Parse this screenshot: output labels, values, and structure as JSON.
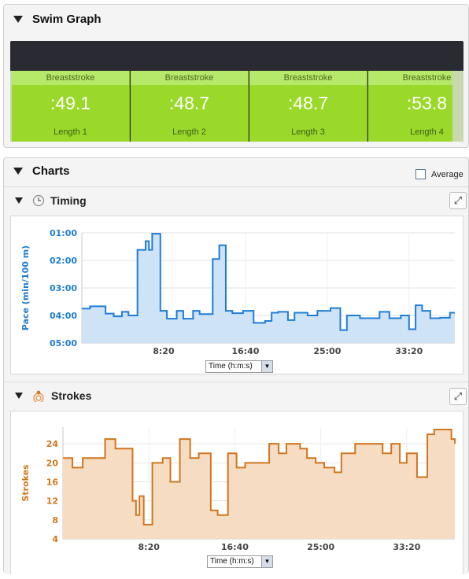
{
  "swim_graph": {
    "title": "Swim Graph",
    "laps": [
      {
        "stroke": "Breaststroke",
        "time": ":49.1",
        "label": "Length 1"
      },
      {
        "stroke": "Breaststroke",
        "time": ":48.7",
        "label": "Length 2"
      },
      {
        "stroke": "Breaststroke",
        "time": ":48.7",
        "label": "Length 3"
      },
      {
        "stroke": "Breaststroke",
        "time": ":53.8",
        "label": "Length 4"
      }
    ]
  },
  "charts": {
    "title": "Charts",
    "average_label": "Average",
    "timing": {
      "title": "Timing",
      "select_value": "Time (h:m:s)"
    },
    "strokes": {
      "title": "Strokes",
      "select_value": "Time (h:m:s)"
    }
  },
  "colors": {
    "lap_green": "#9ad82a",
    "pace_blue": "#1f7dd6",
    "stroke_orange": "#d0761c"
  },
  "icons": {
    "collapse": "triangle-down-icon",
    "clock": "clock-icon",
    "strokes": "swimmer-icon",
    "expand": "expand-icon"
  },
  "chart_data": [
    {
      "type": "area",
      "ylabel": "Pace (min/100 m)",
      "y_ticks": [
        "01:00",
        "02:00",
        "03:00",
        "04:00",
        "05:00"
      ],
      "y_inverted": true,
      "x_ticks": [
        "8:20",
        "16:40",
        "25:00",
        "33:20"
      ],
      "x_range_seconds": [
        0,
        2280
      ],
      "y_range_seconds": [
        60,
        300
      ],
      "grid": true,
      "series": [
        {
          "x": [
            0,
            50,
            145,
            195,
            245,
            285,
            340,
            390,
            410,
            430,
            480,
            520,
            580,
            620,
            680,
            720,
            800,
            840,
            880,
            920,
            985,
            1050,
            1120,
            1160,
            1200,
            1260,
            1300,
            1380,
            1440,
            1520,
            1580,
            1620,
            1700,
            1760,
            1820,
            1880,
            1950,
            2000,
            2040,
            2080,
            2130,
            2190,
            2250,
            2280
          ],
          "y": [
            225,
            220,
            236,
            242,
            232,
            240,
            97,
            78,
            97,
            62,
            230,
            247,
            230,
            247,
            230,
            237,
            117,
            87,
            230,
            235,
            230,
            256,
            252,
            234,
            232,
            250,
            234,
            240,
            230,
            224,
            272,
            240,
            246,
            246,
            232,
            246,
            240,
            270,
            218,
            230,
            246,
            245,
            234,
            234
          ]
        }
      ]
    },
    {
      "type": "area",
      "ylabel": "Strokes",
      "y_ticks": [
        "24",
        "20",
        "16",
        "12",
        "8",
        "4"
      ],
      "x_ticks": [
        "8:20",
        "16:40",
        "25:00",
        "33:20"
      ],
      "x_range_seconds": [
        0,
        2280
      ],
      "ylim": [
        4,
        27.5
      ],
      "grid": true,
      "series": [
        {
          "x": [
            0,
            55,
            115,
            245,
            305,
            405,
            425,
            445,
            470,
            520,
            580,
            625,
            680,
            740,
            790,
            860,
            900,
            960,
            1010,
            1060,
            1200,
            1255,
            1300,
            1380,
            1420,
            1470,
            1520,
            1580,
            1620,
            1700,
            1800,
            1860,
            1910,
            1960,
            2000,
            2060,
            2120,
            2160,
            2200,
            2260,
            2280
          ],
          "y": [
            21,
            19,
            21,
            25,
            23,
            12,
            9,
            13,
            7,
            20,
            21,
            16,
            25,
            21,
            22,
            10,
            9,
            22,
            19,
            20,
            24,
            22,
            24,
            23,
            21,
            20,
            19,
            18,
            22,
            24,
            24,
            22,
            24,
            20,
            22,
            17,
            26,
            27,
            27,
            25,
            24
          ]
        }
      ]
    }
  ]
}
